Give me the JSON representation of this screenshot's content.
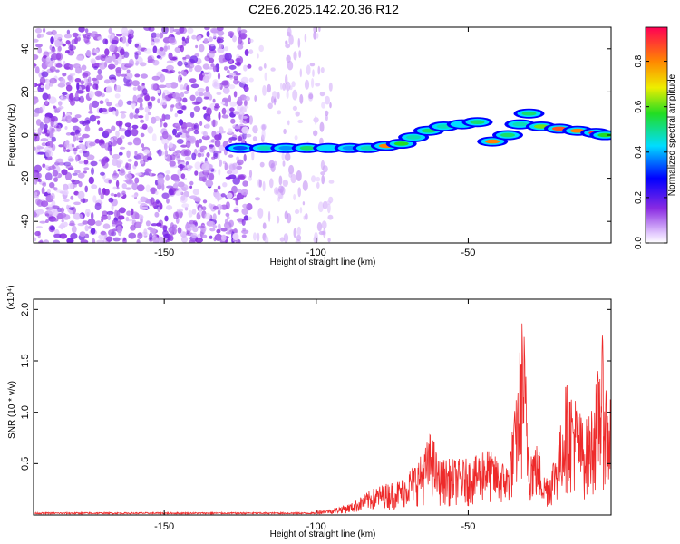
{
  "title": "C2E6.2025.142.20.36.R12",
  "colors": {
    "noise": "#8a2be2",
    "snr_line": "#ee2a2a",
    "frame": "#000000"
  },
  "chart_data": [
    {
      "type": "heatmap",
      "xlabel": "Height of straight line (km)",
      "ylabel": "Frequency (Hz)",
      "xlim": [
        -193,
        -3
      ],
      "ylim": [
        -50,
        50
      ],
      "x_ticks": [
        -150,
        -100,
        -50
      ],
      "y_ticks": [
        -40,
        -20,
        0,
        20,
        40
      ],
      "colorbar": {
        "label": "Normalized spectral amplitude",
        "range": [
          0,
          0.95
        ],
        "ticks": [
          0.0,
          0.2,
          0.4,
          0.6,
          0.8
        ],
        "tick_labels": [
          "0.0",
          "0.2",
          "0.4",
          "0.6",
          "0.8"
        ]
      },
      "noise_region": {
        "x": [
          -193,
          -122
        ],
        "y": [
          -50,
          50
        ],
        "amplitude": 0.1
      },
      "sparse_noise": {
        "x": [
          -122,
          -95
        ],
        "y": [
          -50,
          50
        ],
        "amplitude": 0.05
      },
      "signal_track": [
        {
          "x": -125,
          "y": -6,
          "a": 0.35
        },
        {
          "x": -117,
          "y": -6,
          "a": 0.5
        },
        {
          "x": -110,
          "y": -6,
          "a": 0.4
        },
        {
          "x": -103,
          "y": -6,
          "a": 0.55
        },
        {
          "x": -96,
          "y": -6,
          "a": 0.45
        },
        {
          "x": -89,
          "y": -6,
          "a": 0.4
        },
        {
          "x": -83,
          "y": -6,
          "a": 0.5
        },
        {
          "x": -77,
          "y": -5,
          "a": 0.85
        },
        {
          "x": -72,
          "y": -4,
          "a": 0.6
        },
        {
          "x": -68,
          "y": -1,
          "a": 0.5
        },
        {
          "x": -63,
          "y": 2,
          "a": 0.55
        },
        {
          "x": -58,
          "y": 4,
          "a": 0.5
        },
        {
          "x": -52,
          "y": 5,
          "a": 0.45
        },
        {
          "x": -47,
          "y": 6,
          "a": 0.55
        },
        {
          "x": -42,
          "y": -3,
          "a": 0.85
        },
        {
          "x": -37,
          "y": 0,
          "a": 0.55
        },
        {
          "x": -33,
          "y": 5,
          "a": 0.5
        },
        {
          "x": -30,
          "y": 10,
          "a": 0.55
        },
        {
          "x": -26,
          "y": 4,
          "a": 0.65
        },
        {
          "x": -20,
          "y": 3,
          "a": 0.9
        },
        {
          "x": -14,
          "y": 2,
          "a": 0.85
        },
        {
          "x": -8,
          "y": 1,
          "a": 0.95
        },
        {
          "x": -5,
          "y": 0,
          "a": 0.6
        }
      ]
    },
    {
      "type": "line",
      "xlabel": "Height of straight line (km)",
      "ylabel": "SNR (10 * v/v)",
      "y_multiplier": "(x10⁴)",
      "xlim": [
        -193,
        -3
      ],
      "ylim": [
        0,
        2.1
      ],
      "x_ticks": [
        -150,
        -100,
        -50
      ],
      "y_ticks": [
        0.5,
        1.0,
        1.5,
        2.0
      ],
      "y_tick_labels": [
        "0.5",
        "1.0",
        "1.5",
        "2.0"
      ],
      "envelope": [
        [
          -193,
          0.02
        ],
        [
          -150,
          0.02
        ],
        [
          -120,
          0.02
        ],
        [
          -105,
          0.03
        ],
        [
          -95,
          0.06
        ],
        [
          -88,
          0.12
        ],
        [
          -82,
          0.25
        ],
        [
          -78,
          0.3
        ],
        [
          -72,
          0.35
        ],
        [
          -68,
          0.5
        ],
        [
          -65,
          0.6
        ],
        [
          -62,
          0.85
        ],
        [
          -60,
          0.55
        ],
        [
          -55,
          0.55
        ],
        [
          -52,
          0.55
        ],
        [
          -48,
          0.55
        ],
        [
          -45,
          0.7
        ],
        [
          -42,
          0.6
        ],
        [
          -40,
          0.55
        ],
        [
          -37,
          0.5
        ],
        [
          -34,
          1.2
        ],
        [
          -32,
          2.1
        ],
        [
          -30,
          0.7
        ],
        [
          -27,
          0.7
        ],
        [
          -25,
          0.4
        ],
        [
          -23,
          0.45
        ],
        [
          -20,
          0.8
        ],
        [
          -18,
          1.3
        ],
        [
          -15,
          1.2
        ],
        [
          -12,
          0.9
        ],
        [
          -10,
          1.0
        ],
        [
          -8,
          1.3
        ],
        [
          -6,
          1.8
        ],
        [
          -4,
          1.1
        ],
        [
          -3,
          1.3
        ]
      ]
    }
  ]
}
